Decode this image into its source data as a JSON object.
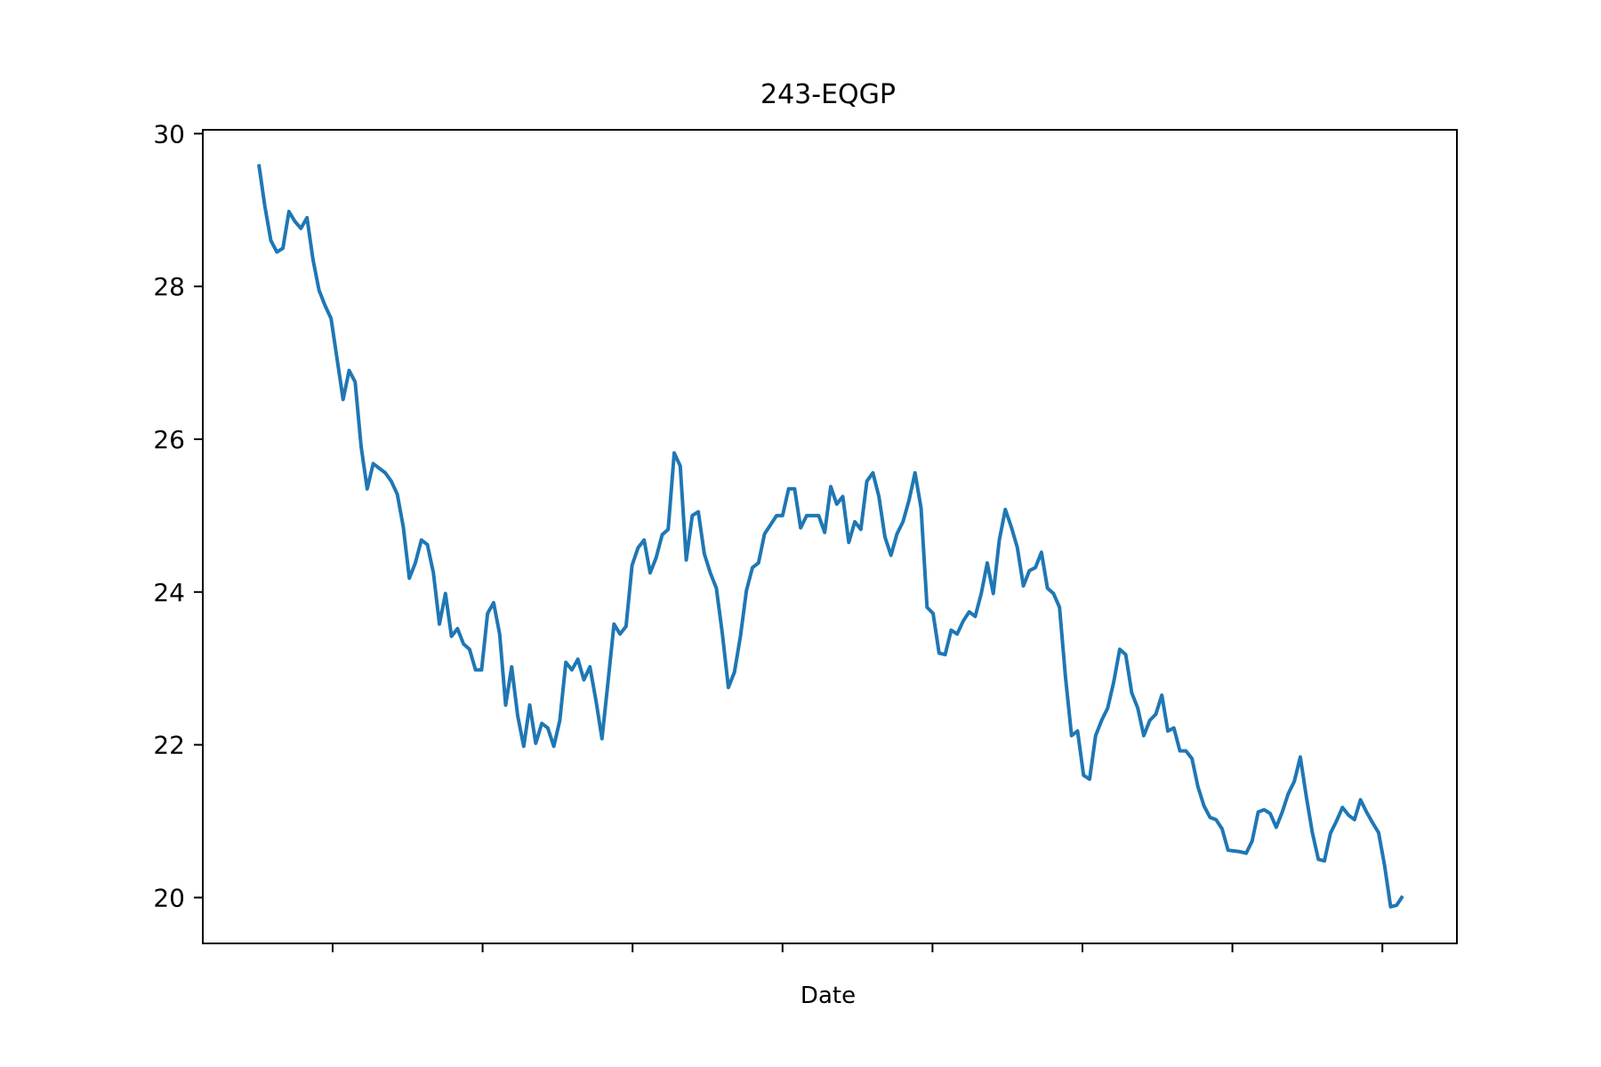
{
  "chart_data": {
    "type": "line",
    "title": "243-EQGP",
    "xlabel": "Date",
    "ylabel": "",
    "ylim": [
      19.4,
      30.05
    ],
    "yticks": [
      20,
      22,
      24,
      26,
      28,
      30
    ],
    "xticks_count": 8,
    "xticks_labels_visible": false,
    "grid": false,
    "legend": "none",
    "line_color": "#1f77b4",
    "series": [
      {
        "values": [
          29.6,
          29.05,
          28.6,
          28.45,
          28.5,
          28.98,
          28.85,
          28.76,
          28.9,
          28.35,
          27.95,
          27.75,
          27.58,
          27.05,
          26.52,
          26.9,
          26.75,
          25.9,
          25.35,
          25.68,
          25.62,
          25.56,
          25.45,
          25.28,
          24.85,
          24.18,
          24.38,
          24.68,
          24.62,
          24.25,
          23.58,
          23.98,
          23.42,
          23.52,
          23.32,
          23.25,
          22.98,
          22.98,
          23.72,
          23.86,
          23.45,
          22.52,
          23.02,
          22.38,
          21.98,
          22.52,
          22.02,
          22.28,
          22.22,
          21.98,
          22.32,
          23.08,
          22.98,
          23.12,
          22.85,
          23.02,
          22.58,
          22.08,
          22.82,
          23.58,
          23.45,
          23.55,
          24.35,
          24.58,
          24.68,
          24.25,
          24.45,
          24.75,
          24.82,
          25.82,
          25.65,
          24.42,
          25.0,
          25.05,
          24.5,
          24.25,
          24.05,
          23.45,
          22.75,
          22.95,
          23.42,
          24.02,
          24.32,
          24.38,
          24.76,
          24.88,
          25.0,
          25.0,
          25.35,
          25.35,
          24.84,
          25.0,
          25.0,
          25.0,
          24.78,
          25.38,
          25.15,
          25.25,
          24.65,
          24.92,
          24.82,
          25.45,
          25.56,
          25.25,
          24.72,
          24.48,
          24.76,
          24.92,
          25.2,
          25.56,
          25.1,
          23.8,
          23.72,
          23.2,
          23.18,
          23.5,
          23.45,
          23.62,
          23.74,
          23.68,
          23.98,
          24.38,
          23.98,
          24.68,
          25.08,
          24.85,
          24.58,
          24.08,
          24.28,
          24.32,
          24.52,
          24.05,
          23.98,
          23.8,
          22.88,
          22.12,
          22.18,
          21.6,
          21.55,
          22.12,
          22.32,
          22.48,
          22.82,
          23.25,
          23.18,
          22.68,
          22.48,
          22.12,
          22.32,
          22.4,
          22.65,
          22.18,
          22.22,
          21.92,
          21.92,
          21.82,
          21.45,
          21.2,
          21.05,
          21.02,
          20.9,
          20.62,
          20.61,
          20.6,
          20.58,
          20.74,
          21.12,
          21.15,
          21.1,
          20.92,
          21.12,
          21.36,
          21.52,
          21.84,
          21.32,
          20.85,
          20.5,
          20.48,
          20.84,
          21.0,
          21.18,
          21.08,
          21.02,
          21.28,
          21.12,
          20.98,
          20.85,
          20.42,
          19.88,
          19.9,
          20.02
        ]
      }
    ]
  }
}
